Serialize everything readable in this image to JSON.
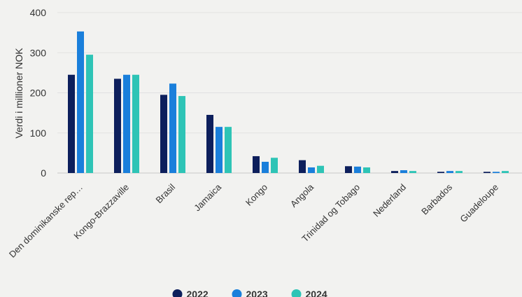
{
  "chart_data": {
    "type": "bar",
    "ylabel": "Verdi i millioner NOK",
    "xlabel": "",
    "ylim": [
      0,
      400
    ],
    "yticks": [
      0,
      100,
      200,
      300,
      400
    ],
    "grid": true,
    "legend_position": "bottom-center",
    "categories": [
      "Den dominikanske rep…",
      "Kongo-Brazzaville",
      "Brasil",
      "Jamaica",
      "Kongo",
      "Angola",
      "Trinidad og Tobago",
      "Nederland",
      "Barbados",
      "Guadeloupe"
    ],
    "series": [
      {
        "name": "2022",
        "color": "#0d1f5c",
        "values": [
          245,
          235,
          195,
          145,
          42,
          32,
          17,
          5,
          3,
          3
        ]
      },
      {
        "name": "2023",
        "color": "#1a7fdb",
        "values": [
          353,
          245,
          223,
          115,
          28,
          14,
          16,
          7,
          5,
          3
        ]
      },
      {
        "name": "2024",
        "color": "#2ec4b6",
        "values": [
          295,
          245,
          192,
          115,
          38,
          18,
          14,
          5,
          5,
          5
        ]
      }
    ]
  }
}
